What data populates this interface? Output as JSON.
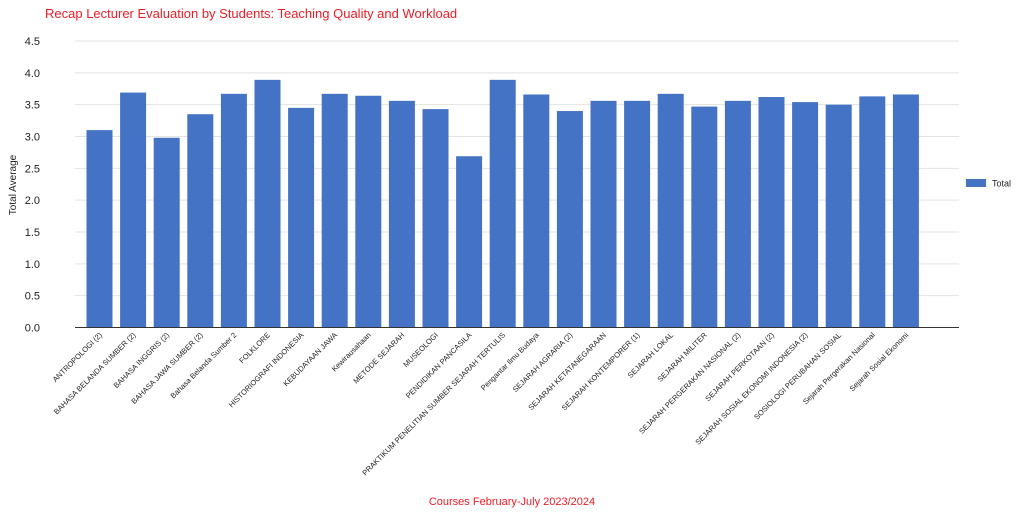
{
  "chart_data": {
    "type": "bar",
    "title": "Recap Lecturer Evaluation by Students: Teaching Quality and Workload",
    "xlabel": "Courses February-July 2023/2024",
    "ylabel": "Total Average",
    "ylim": [
      0,
      4.5
    ],
    "yticks": [
      "0.0",
      "0.5",
      "1.0",
      "1.5",
      "2.0",
      "2.5",
      "3.0",
      "3.5",
      "4.0",
      "4.5"
    ],
    "grid": true,
    "legend_position": "right",
    "series": [
      {
        "name": "Total",
        "color": "#4472c4",
        "values": [
          3.1,
          3.69,
          2.98,
          3.35,
          3.67,
          3.89,
          3.45,
          3.67,
          3.64,
          3.56,
          3.43,
          2.69,
          3.89,
          3.66,
          3.4,
          3.56,
          3.56,
          3.67,
          3.47,
          3.56,
          3.62,
          3.54,
          3.5,
          3.63,
          3.66
        ]
      }
    ],
    "categories": [
      "ANTROPOLOGI (2)",
      "BAHASA BELANDA SUMBER (2)",
      "BAHASA INGGRIS (2)",
      "BAHASA JAWA SUMBER (2)",
      "Bahasa Belanda Sumber 2",
      "FOLKLORE",
      "HISTORIOGRAFI INDONESIA",
      "KEBUDAYAAN JAWA",
      "Kewirausahaan",
      "METODE SEJARAH",
      "MUSEOLOGI",
      "PENDIDIKAN PANCASILA",
      "PRAKTIKUM PENELITIAN SUMBER SEJARAH TERTULIS",
      "Pengantar Ilmu Budaya",
      "SEJARAH AGRARIA (2)",
      "SEJARAH KETATANEGARAAN",
      "SEJARAH KONTEMPORER (1)",
      "SEJARAH LOKAL",
      "SEJARAH MILITER",
      "SEJARAH PERGERAKAN NASIONAL (2)",
      "SEJARAH PERKOTAAN (2)",
      "SEJARAH SOSIAL EKONOMI INDONESIA (2)",
      "SOSIOLOGI PERUBAHAN SOSIAL",
      "Sejarah Pergerakan Nasional",
      "Sejarah Sosial Ekonomi"
    ]
  }
}
